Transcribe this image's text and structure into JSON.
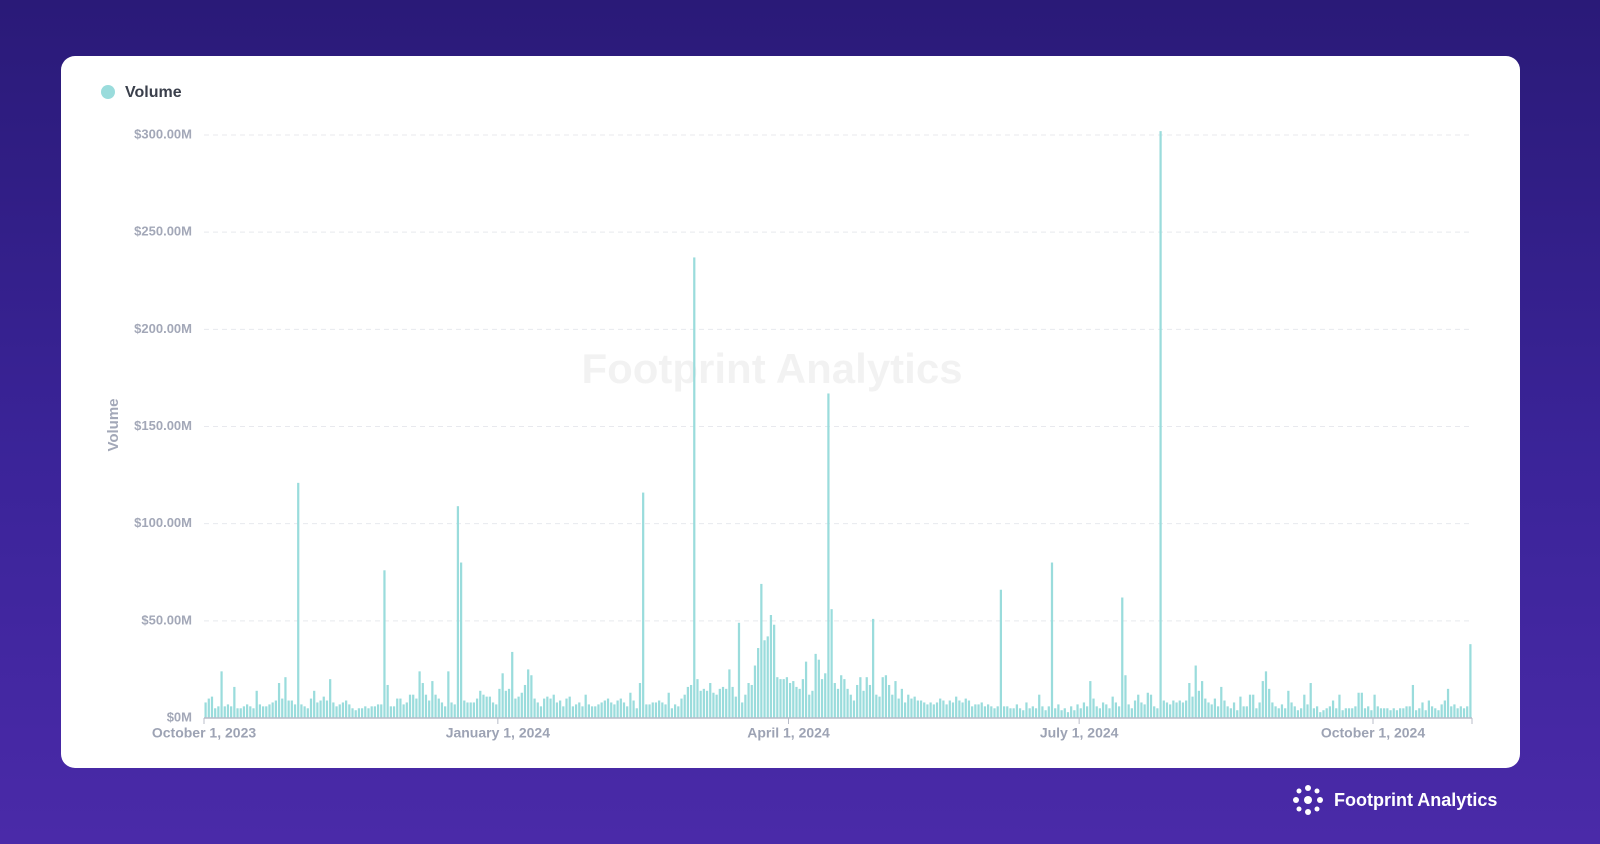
{
  "chart_data": {
    "type": "bar",
    "y_label": "Volume",
    "watermark": "Footprint Analytics",
    "brand": "Footprint Analytics",
    "series": [
      {
        "name": "Volume",
        "color": "#9adcdc",
        "values": [
          8,
          10,
          11,
          5,
          6,
          24,
          6,
          7,
          6,
          16,
          5,
          5,
          6,
          7,
          6,
          5,
          14,
          7,
          6,
          6,
          7,
          8,
          9,
          18,
          10,
          21,
          9,
          9,
          7,
          121,
          7,
          6,
          5,
          10,
          14,
          8,
          9,
          11,
          9,
          20,
          8,
          6,
          7,
          8,
          9,
          7,
          5,
          4,
          5,
          5,
          6,
          5,
          6,
          6,
          7,
          7,
          76,
          17,
          6,
          6,
          10,
          10,
          7,
          8,
          12,
          12,
          10,
          24,
          18,
          12,
          9,
          19,
          12,
          10,
          8,
          6,
          24,
          8,
          7,
          109,
          80,
          9,
          8,
          8,
          8,
          10,
          14,
          12,
          11,
          11,
          8,
          7,
          15,
          23,
          14,
          15,
          34,
          10,
          11,
          13,
          17,
          25,
          22,
          10,
          8,
          6,
          10,
          11,
          10,
          12,
          8,
          9,
          6,
          10,
          11,
          6,
          7,
          8,
          6,
          12,
          7,
          6,
          6,
          7,
          8,
          9,
          10,
          8,
          7,
          9,
          10,
          8,
          6,
          13,
          9,
          5,
          18,
          116,
          7,
          7,
          8,
          8,
          9,
          8,
          7,
          13,
          5,
          7,
          6,
          10,
          12,
          16,
          17,
          237,
          20,
          14,
          15,
          14,
          18,
          13,
          12,
          15,
          16,
          15,
          25,
          16,
          11,
          49,
          8,
          12,
          18,
          17,
          27,
          36,
          69,
          40,
          42,
          53,
          48,
          21,
          20,
          20,
          21,
          18,
          19,
          16,
          15,
          20,
          29,
          12,
          14,
          33,
          30,
          20,
          23,
          167,
          56,
          18,
          15,
          22,
          20,
          15,
          12,
          9,
          17,
          21,
          14,
          21,
          17,
          51,
          12,
          11,
          21,
          22,
          17,
          12,
          19,
          10,
          15,
          8,
          12,
          10,
          11,
          9,
          9,
          8,
          7,
          8,
          7,
          8,
          10,
          9,
          7,
          9,
          8,
          11,
          9,
          8,
          10,
          9,
          6,
          7,
          7,
          8,
          6,
          7,
          6,
          5,
          6,
          66,
          6,
          6,
          5,
          5,
          7,
          5,
          4,
          8,
          5,
          6,
          5,
          12,
          6,
          4,
          6,
          80,
          5,
          7,
          4,
          5,
          3,
          6,
          4,
          7,
          5,
          8,
          6,
          19,
          10,
          6,
          5,
          8,
          7,
          5,
          11,
          8,
          6,
          62,
          22,
          7,
          5,
          9,
          12,
          8,
          7,
          13,
          12,
          6,
          5,
          302,
          9,
          8,
          7,
          9,
          8,
          9,
          8,
          9,
          18,
          11,
          27,
          14,
          19,
          10,
          8,
          7,
          10,
          6,
          16,
          9,
          6,
          5,
          8,
          4,
          11,
          6,
          6,
          12,
          12,
          5,
          8,
          19,
          24,
          15,
          8,
          6,
          5,
          7,
          5,
          14,
          8,
          6,
          4,
          5,
          12,
          7,
          18,
          5,
          6,
          3,
          4,
          5,
          6,
          9,
          5,
          12,
          4,
          5,
          5,
          5,
          6,
          13,
          13,
          5,
          6,
          4,
          12,
          6,
          5,
          5,
          5,
          4,
          5,
          4,
          5,
          5,
          6,
          6,
          17,
          4,
          5,
          8,
          4,
          9,
          6,
          5,
          4,
          7,
          9,
          15,
          6,
          7,
          5,
          6,
          5,
          6,
          38
        ]
      }
    ],
    "x": [
      "2023-10-01",
      "2023-10-02",
      "2023-10-03",
      "2023-10-04",
      "2023-10-05",
      "2023-10-06",
      "2023-10-07",
      "2023-10-08",
      "2023-10-09",
      "2023-10-10",
      "2023-10-11",
      "2023-10-12",
      "2023-10-13",
      "2023-10-14",
      "2023-10-15",
      "2023-10-16",
      "2023-10-17",
      "2023-10-18",
      "2023-10-19",
      "2023-10-20",
      "2023-10-21",
      "2023-10-22",
      "2023-10-23",
      "2023-10-24",
      "2023-10-25",
      "2023-10-26",
      "2023-10-27",
      "2023-10-28",
      "2023-10-29",
      "2023-10-30",
      "2023-10-31",
      "2023-11-01",
      "2023-11-02",
      "2023-11-03",
      "2023-11-04",
      "2023-11-05",
      "2023-11-06",
      "2023-11-07",
      "2023-11-08",
      "2023-11-09",
      "2023-11-10",
      "2023-11-11",
      "2023-11-12",
      "2023-11-13",
      "2023-11-14",
      "2023-11-15",
      "2023-11-16",
      "2023-11-17",
      "2023-11-18",
      "2023-11-19",
      "2023-11-20",
      "2023-11-21",
      "2023-11-22",
      "2023-11-23",
      "2023-11-24",
      "2023-11-25",
      "2023-11-26",
      "2023-11-27",
      "2023-11-28",
      "2023-11-29",
      "2023-11-30",
      "2023-12-01",
      "2023-12-02",
      "2023-12-03",
      "2023-12-04",
      "2023-12-05",
      "2023-12-06",
      "2023-12-07",
      "2023-12-08",
      "2023-12-09",
      "2023-12-10",
      "2023-12-11",
      "2023-12-12",
      "2023-12-13",
      "2023-12-14",
      "2023-12-15",
      "2023-12-16",
      "2023-12-17",
      "2023-12-18",
      "2023-12-19",
      "2023-12-20",
      "2023-12-21",
      "2023-12-22",
      "2023-12-23",
      "2023-12-24",
      "2023-12-25",
      "2023-12-26",
      "2023-12-27",
      "2023-12-28",
      "2023-12-29",
      "2023-12-30",
      "2023-12-31",
      "2024-01-01",
      "2024-01-02",
      "2024-01-03",
      "2024-01-04",
      "2024-01-05",
      "2024-01-06",
      "2024-01-07",
      "2024-01-08",
      "2024-01-09",
      "2024-01-10",
      "2024-01-11",
      "2024-01-12",
      "2024-01-13",
      "2024-01-14",
      "2024-01-15",
      "2024-01-16",
      "2024-01-17",
      "2024-01-18",
      "2024-01-19",
      "2024-01-20",
      "2024-01-21",
      "2024-01-22",
      "2024-01-23",
      "2024-01-24",
      "2024-01-25",
      "2024-01-26",
      "2024-01-27",
      "2024-01-28",
      "2024-01-29",
      "2024-01-30",
      "2024-01-31",
      "2024-02-01",
      "2024-02-02",
      "2024-02-03",
      "2024-02-04",
      "2024-02-05",
      "2024-02-06",
      "2024-02-07",
      "2024-02-08",
      "2024-02-09",
      "2024-02-10",
      "2024-02-11",
      "2024-02-12",
      "2024-02-13",
      "2024-02-14",
      "2024-02-15",
      "2024-02-16",
      "2024-02-17",
      "2024-02-18",
      "2024-02-19",
      "2024-02-20",
      "2024-02-21",
      "2024-02-22",
      "2024-02-23",
      "2024-02-24",
      "2024-02-25",
      "2024-02-26",
      "2024-02-27",
      "2024-02-28",
      "2024-02-29",
      "2024-03-01",
      "2024-03-02",
      "2024-03-03",
      "2024-03-04",
      "2024-03-05",
      "2024-03-06",
      "2024-03-07",
      "2024-03-08",
      "2024-03-09",
      "2024-03-10",
      "2024-03-11",
      "2024-03-12",
      "2024-03-13",
      "2024-03-14",
      "2024-03-15",
      "2024-03-16",
      "2024-03-17",
      "2024-03-18",
      "2024-03-19",
      "2024-03-20",
      "2024-03-21",
      "2024-03-22",
      "2024-03-23",
      "2024-03-24",
      "2024-03-25",
      "2024-03-26",
      "2024-03-27",
      "2024-03-28",
      "2024-03-29",
      "2024-03-30",
      "2024-03-31",
      "2024-04-01",
      "2024-04-02",
      "2024-04-03",
      "2024-04-04",
      "2024-04-05",
      "2024-04-06",
      "2024-04-07",
      "2024-04-08",
      "2024-04-09",
      "2024-04-10",
      "2024-04-11",
      "2024-04-12",
      "2024-04-13",
      "2024-04-14",
      "2024-04-15",
      "2024-04-16",
      "2024-04-17",
      "2024-04-18",
      "2024-04-19",
      "2024-04-20",
      "2024-04-21",
      "2024-04-22",
      "2024-04-23",
      "2024-04-24",
      "2024-04-25",
      "2024-04-26",
      "2024-04-27",
      "2024-04-28",
      "2024-04-29",
      "2024-04-30",
      "2024-05-01",
      "2024-05-02",
      "2024-05-03",
      "2024-05-04",
      "2024-05-05",
      "2024-05-06",
      "2024-05-07",
      "2024-05-08",
      "2024-05-09",
      "2024-05-10",
      "2024-05-11",
      "2024-05-12",
      "2024-05-13",
      "2024-05-14",
      "2024-05-15",
      "2024-05-16",
      "2024-05-17",
      "2024-05-18",
      "2024-05-19",
      "2024-05-20",
      "2024-05-21",
      "2024-05-22",
      "2024-05-23",
      "2024-05-24",
      "2024-05-25",
      "2024-05-26",
      "2024-05-27",
      "2024-05-28",
      "2024-05-29",
      "2024-05-30",
      "2024-05-31",
      "2024-06-01",
      "2024-06-02",
      "2024-06-03",
      "2024-06-04",
      "2024-06-05",
      "2024-06-06",
      "2024-06-07",
      "2024-06-08",
      "2024-06-09",
      "2024-06-10",
      "2024-06-11",
      "2024-06-12",
      "2024-06-13",
      "2024-06-14",
      "2024-06-15",
      "2024-06-16",
      "2024-06-17",
      "2024-06-18",
      "2024-06-19",
      "2024-06-20",
      "2024-06-21",
      "2024-06-22",
      "2024-06-23",
      "2024-06-24",
      "2024-06-25",
      "2024-06-26",
      "2024-06-27",
      "2024-06-28",
      "2024-06-29",
      "2024-06-30",
      "2024-07-01",
      "2024-07-02",
      "2024-07-03",
      "2024-07-04",
      "2024-07-05",
      "2024-07-06",
      "2024-07-07",
      "2024-07-08",
      "2024-07-09",
      "2024-07-10",
      "2024-07-11",
      "2024-07-12",
      "2024-07-13",
      "2024-07-14",
      "2024-07-15",
      "2024-07-16",
      "2024-07-17",
      "2024-07-18",
      "2024-07-19",
      "2024-07-20",
      "2024-07-21",
      "2024-07-22",
      "2024-07-23",
      "2024-07-24",
      "2024-07-25",
      "2024-07-26",
      "2024-07-27",
      "2024-07-28",
      "2024-07-29",
      "2024-07-30",
      "2024-07-31",
      "2024-08-01",
      "2024-08-02",
      "2024-08-03",
      "2024-08-04",
      "2024-08-05",
      "2024-08-06",
      "2024-08-07",
      "2024-08-08",
      "2024-08-09",
      "2024-08-10",
      "2024-08-11",
      "2024-08-12",
      "2024-08-13",
      "2024-08-14",
      "2024-08-15",
      "2024-08-16",
      "2024-08-17",
      "2024-08-18",
      "2024-08-19",
      "2024-08-20",
      "2024-08-21",
      "2024-08-22",
      "2024-08-23",
      "2024-08-24",
      "2024-08-25",
      "2024-08-26",
      "2024-08-27",
      "2024-08-28",
      "2024-08-29",
      "2024-08-30",
      "2024-08-31",
      "2024-09-01",
      "2024-09-02",
      "2024-09-03",
      "2024-09-04",
      "2024-09-05",
      "2024-09-06",
      "2024-09-07",
      "2024-09-08",
      "2024-09-09",
      "2024-09-10",
      "2024-09-11",
      "2024-09-12",
      "2024-09-13",
      "2024-09-14",
      "2024-09-15",
      "2024-09-16",
      "2024-09-17",
      "2024-09-18",
      "2024-09-19",
      "2024-09-20",
      "2024-09-21",
      "2024-09-22",
      "2024-09-23",
      "2024-09-24",
      "2024-09-25",
      "2024-09-26",
      "2024-09-27",
      "2024-09-28",
      "2024-09-29",
      "2024-09-30",
      "2024-10-01",
      "2024-10-02",
      "2024-10-03",
      "2024-10-04",
      "2024-10-05",
      "2024-10-06",
      "2024-10-07",
      "2024-10-08",
      "2024-10-09",
      "2024-10-10",
      "2024-10-11",
      "2024-10-12",
      "2024-10-13",
      "2024-10-14",
      "2024-10-15",
      "2024-10-16",
      "2024-10-17",
      "2024-10-18",
      "2024-10-19",
      "2024-10-20",
      "2024-10-21",
      "2024-10-22",
      "2024-10-23",
      "2024-10-24",
      "2024-10-25",
      "2024-10-26",
      "2024-10-27",
      "2024-10-28",
      "2024-10-29",
      "2024-10-30",
      "2024-10-31"
    ],
    "xlim": [
      "2023-10-01",
      "2024-10-31"
    ],
    "xticks": [
      {
        "value": "2023-10-01",
        "label": "October 1, 2023"
      },
      {
        "value": "2024-01-01",
        "label": "January 1, 2024"
      },
      {
        "value": "2024-04-01",
        "label": "April 1, 2024"
      },
      {
        "value": "2024-07-01",
        "label": "July 1, 2024"
      },
      {
        "value": "2024-10-01",
        "label": "October 1, 2024"
      }
    ],
    "ylim": [
      0,
      300
    ],
    "yticks": [
      {
        "value": 0,
        "label": "$0M"
      },
      {
        "value": 50,
        "label": "$50.00M"
      },
      {
        "value": 100,
        "label": "$100.00M"
      },
      {
        "value": 150,
        "label": "$150.00M"
      },
      {
        "value": 200,
        "label": "$200.00M"
      },
      {
        "value": 250,
        "label": "$250.00M"
      },
      {
        "value": 300,
        "label": "$300.00M"
      }
    ],
    "grid": true,
    "legend": "top-left"
  }
}
